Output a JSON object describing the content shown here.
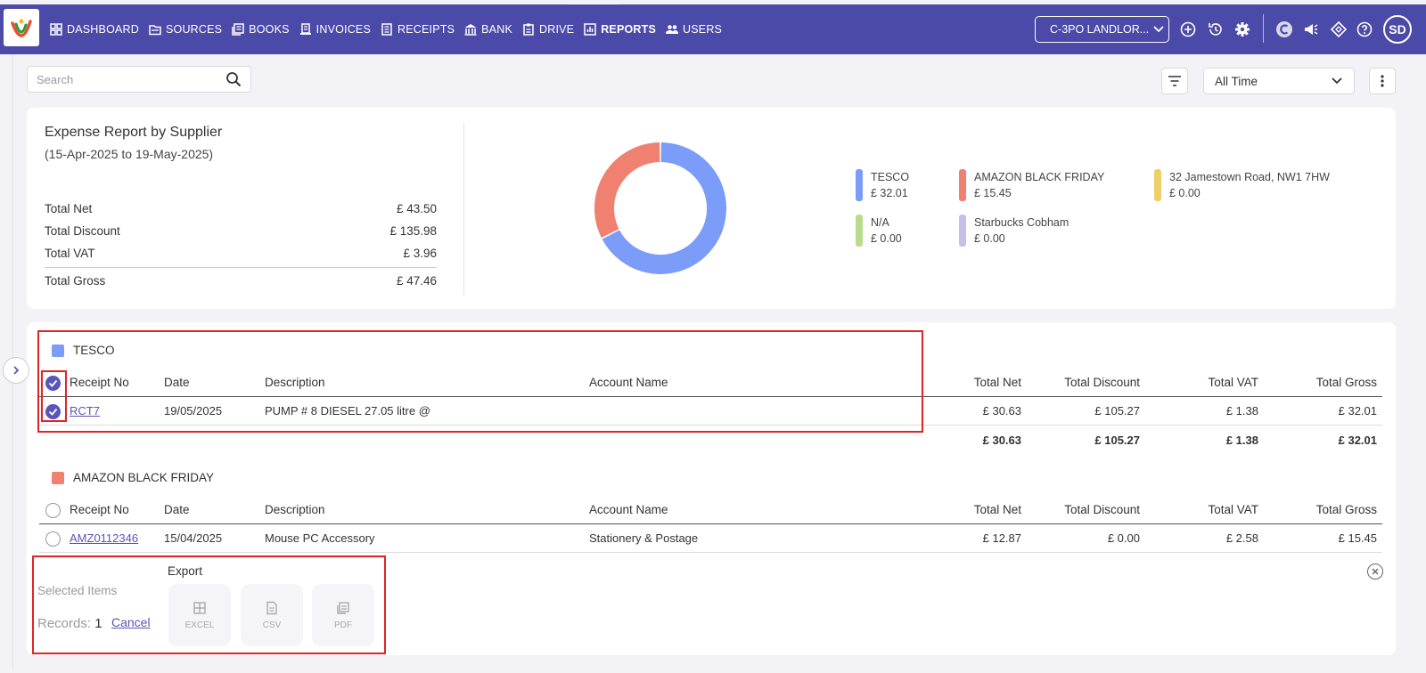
{
  "nav": {
    "items": [
      {
        "label": "DASHBOARD",
        "icon": "dashboard-icon"
      },
      {
        "label": "SOURCES",
        "icon": "folder-icon"
      },
      {
        "label": "BOOKS",
        "icon": "books-icon"
      },
      {
        "label": "INVOICES",
        "icon": "invoice-icon"
      },
      {
        "label": "RECEIPTS",
        "icon": "receipt-icon"
      },
      {
        "label": "BANK",
        "icon": "bank-icon"
      },
      {
        "label": "DRIVE",
        "icon": "drive-icon"
      },
      {
        "label": "REPORTS",
        "icon": "reports-icon",
        "active": true
      },
      {
        "label": "USERS",
        "icon": "users-icon"
      }
    ],
    "company": "C-3PO LANDLOR...",
    "avatar": "SD"
  },
  "toolbar": {
    "search_placeholder": "Search",
    "time_filter": "All Time"
  },
  "report": {
    "title": "Expense Report by Supplier",
    "range": "(15-Apr-2025 to 19-May-2025)",
    "totals": [
      {
        "label": "Total Net",
        "value": "£ 43.50"
      },
      {
        "label": "Total Discount",
        "value": "£ 135.98"
      },
      {
        "label": "Total VAT",
        "value": "£ 3.96"
      },
      {
        "label": "Total Gross",
        "value": "£ 47.46"
      }
    ]
  },
  "chart_data": {
    "type": "pie",
    "categories": [
      "TESCO",
      "AMAZON BLACK FRIDAY",
      "32 Jamestown Road, NW1 7HW",
      "N/A",
      "Starbucks Cobham"
    ],
    "values": [
      32.01,
      15.45,
      0.0,
      0.0,
      0.0
    ],
    "value_labels": [
      "£ 32.01",
      "£ 15.45",
      "£ 0.00",
      "£ 0.00",
      "£ 0.00"
    ],
    "colors": [
      "#7b9cf8",
      "#f08070",
      "#efcf6a",
      "#b9dc8c",
      "#c4c0ea"
    ],
    "legend": "right"
  },
  "columns": [
    "Receipt No",
    "Date",
    "Description",
    "Account Name",
    "Total Net",
    "Total Discount",
    "Total VAT",
    "Total Gross"
  ],
  "groups": [
    {
      "name": "TESCO",
      "color": "#7b9cf8",
      "rows": [
        {
          "receipt": "RCT7",
          "date": "19/05/2025",
          "description": "PUMP # 8 DIESEL 27.05 litre @",
          "account": "",
          "net": "£ 30.63",
          "discount": "£ 105.27",
          "vat": "£ 1.38",
          "gross": "£ 32.01"
        }
      ],
      "subtotal": {
        "net": "£ 30.63",
        "discount": "£ 105.27",
        "vat": "£ 1.38",
        "gross": "£ 32.01"
      }
    },
    {
      "name": "AMAZON BLACK FRIDAY",
      "color": "#f08070",
      "rows": [
        {
          "receipt": "AMZ0112346",
          "date": "15/04/2025",
          "description": "Mouse PC Accessory",
          "account": "Stationery & Postage",
          "net": "£ 12.87",
          "discount": "£ 0.00",
          "vat": "£ 2.58",
          "gross": "£ 15.45"
        }
      ]
    }
  ],
  "selection": {
    "export_label": "Export",
    "selected_label": "Selected Items",
    "records_label": "Records:",
    "records_count": "1",
    "cancel_label": "Cancel",
    "buttons": [
      "EXCEL",
      "CSV",
      "PDF"
    ]
  }
}
